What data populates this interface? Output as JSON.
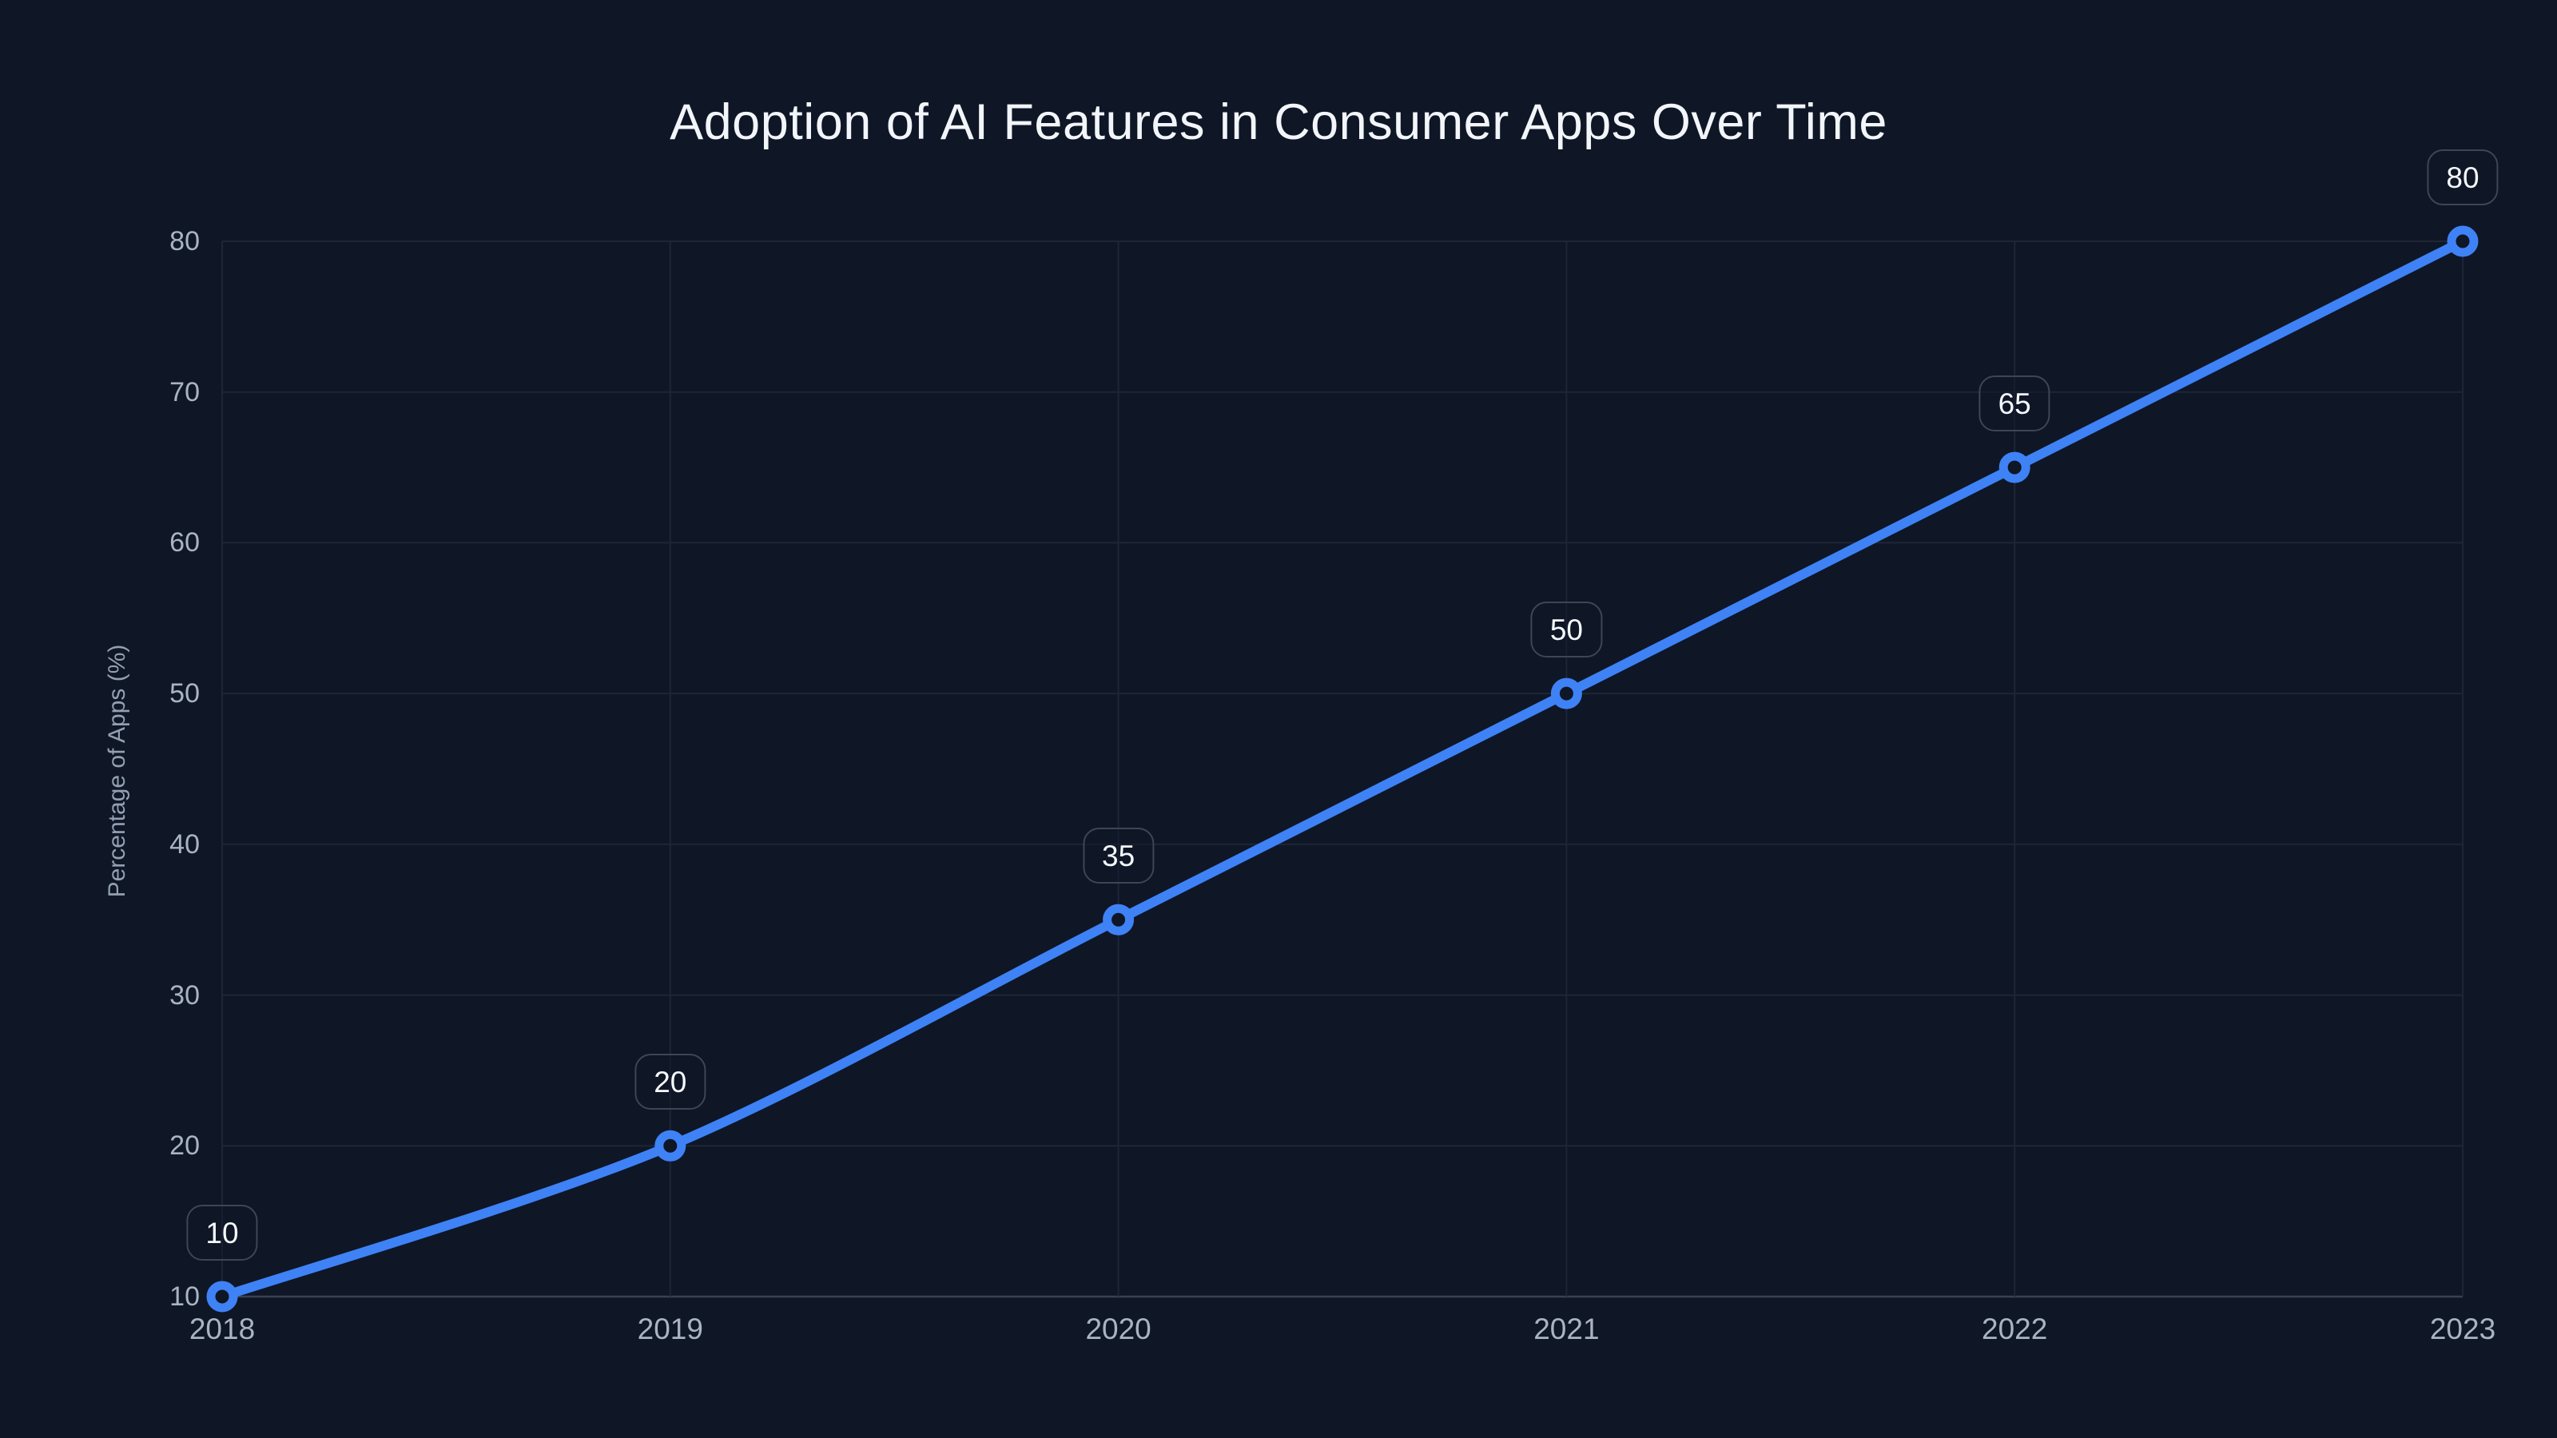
{
  "chart_data": {
    "type": "line",
    "title": "Adoption of AI Features in Consumer Apps Over Time",
    "xlabel": "",
    "ylabel": "Percentage of Apps (%)",
    "categories": [
      "2018",
      "2019",
      "2020",
      "2021",
      "2022",
      "2023"
    ],
    "values": [
      10,
      20,
      35,
      50,
      65,
      80
    ],
    "data_labels": [
      "10",
      "20",
      "35",
      "50",
      "65",
      "80"
    ],
    "yticks": [
      10,
      20,
      30,
      40,
      50,
      60,
      70,
      80
    ],
    "ylim": [
      10,
      80
    ],
    "ytick_step": 10,
    "grid": true,
    "legend": "none",
    "line_smoothing": true,
    "markers": "open-circle"
  },
  "colors": {
    "background": "#0f1626",
    "line": "#3e82f6",
    "marker_ring": "#3e82f6",
    "marker_fill": "#0f1626",
    "grid_line": "#1d2637",
    "axis_line": "#3a4250",
    "tick_label": "#a9b4c3",
    "axis_title_text": "#93a0b2",
    "title_text": "#f2f5f9",
    "badge_text": "#f5f8fc",
    "badge_border": "#3c4658",
    "badge_background": "rgba(15,22,38,0.45)"
  }
}
